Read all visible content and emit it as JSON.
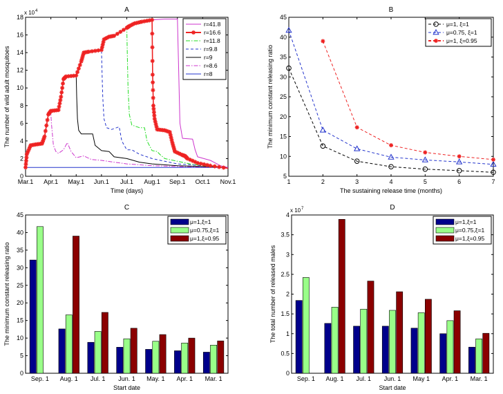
{
  "chart_data": [
    {
      "id": "A",
      "type": "line",
      "title": "A",
      "xlabel": "Time (days)",
      "ylabel": "The number of wild adult mosquitoes",
      "y_multiplier": "x 10^4",
      "y_multiplier_label": "x 10",
      "y_multiplier_exp": "4",
      "xlim": [
        0,
        8
      ],
      "ylim": [
        0,
        18
      ],
      "xticks": [
        "Mar.1",
        "Apr.1",
        "May.1",
        "Jun.1",
        "Jul.1",
        "Aug.1",
        "Sep.1",
        "Oct.1",
        "Nov.1"
      ],
      "yticks": [
        0,
        2,
        4,
        6,
        8,
        10,
        12,
        14,
        16,
        18
      ],
      "legend_position": "top-right",
      "series": [
        {
          "name": "r=41.8",
          "color": "#cc33cc",
          "style": "solid",
          "marker": "none",
          "x": [
            0,
            0.05,
            0.2,
            0.4,
            0.65,
            0.75,
            0.9,
            1.0,
            1.3,
            1.4,
            1.5,
            1.6,
            2.0,
            2.2,
            2.3,
            2.5,
            3.0,
            3.1,
            3.3,
            3.5,
            4.0,
            4.1,
            4.3,
            4.6,
            5.0,
            5.5,
            6.0,
            6.05,
            6.1,
            6.2,
            6.6,
            6.7,
            6.8,
            7.3,
            7.5,
            7.7,
            8.0
          ],
          "y": [
            1,
            2.5,
            3.5,
            3.6,
            3.7,
            4.5,
            7,
            7.4,
            7.5,
            9,
            11,
            11.3,
            11.4,
            13,
            14,
            14.1,
            14.3,
            15.5,
            15.8,
            15.9,
            16.8,
            17,
            17.3,
            17.5,
            17.7,
            17.8,
            17.8,
            12,
            6,
            4.3,
            4.2,
            3,
            2.2,
            1.8,
            1.5,
            1.2,
            1
          ]
        },
        {
          "name": "r=16.6",
          "color": "#ee2222",
          "style": "solid",
          "marker": "star",
          "x": [
            0,
            0.05,
            0.2,
            0.4,
            0.65,
            0.75,
            0.9,
            1.0,
            1.3,
            1.4,
            1.5,
            1.6,
            2.0,
            2.2,
            2.3,
            2.5,
            3.0,
            3.1,
            3.3,
            3.5,
            4.0,
            4.1,
            4.3,
            4.6,
            5.0,
            5.02,
            5.05,
            5.1,
            5.2,
            5.5,
            5.7,
            5.8,
            5.9,
            6.2,
            6.3,
            6.4,
            6.8,
            7.3,
            8.0
          ],
          "y": [
            1,
            2.5,
            3.5,
            3.6,
            3.7,
            4.5,
            7,
            7.4,
            7.5,
            9,
            11,
            11.3,
            11.4,
            13,
            14,
            14.1,
            14.3,
            15.5,
            15.8,
            15.9,
            16.8,
            17,
            17.3,
            17.5,
            17.7,
            11.5,
            8,
            6.5,
            5.3,
            5.2,
            5,
            3.8,
            2.8,
            2.4,
            2.3,
            2.0,
            1.5,
            1.2,
            0.9
          ]
        },
        {
          "name": "r=11.8",
          "color": "#22dd22",
          "style": "dashdot",
          "marker": "none",
          "x": [
            0,
            0.05,
            0.2,
            0.4,
            0.65,
            0.75,
            0.9,
            1.0,
            1.3,
            1.4,
            1.5,
            1.6,
            2.0,
            2.2,
            2.3,
            2.5,
            3.0,
            3.1,
            3.3,
            3.5,
            4.0,
            4.02,
            4.05,
            4.1,
            4.2,
            4.5,
            4.7,
            4.8,
            5.0,
            5.2,
            5.3,
            5.5,
            6.0,
            6.5,
            7.0,
            8.0
          ],
          "y": [
            1,
            2.5,
            3.5,
            3.6,
            3.7,
            4.5,
            7,
            7.4,
            7.5,
            9,
            11,
            11.3,
            11.4,
            13,
            14,
            14.1,
            14.3,
            15.5,
            15.8,
            15.9,
            16.8,
            14,
            10,
            7,
            5.8,
            5.5,
            5.5,
            4.0,
            2.9,
            2.8,
            2.5,
            2.0,
            1.7,
            1.4,
            1.2,
            0.95
          ]
        },
        {
          "name": "r=9.8",
          "color": "#2233cc",
          "style": "dashed",
          "marker": "none",
          "x": [
            0,
            0.05,
            0.2,
            0.4,
            0.65,
            0.75,
            0.9,
            1.0,
            1.3,
            1.4,
            1.5,
            1.6,
            2.0,
            2.2,
            2.3,
            2.5,
            3.0,
            3.02,
            3.05,
            3.1,
            3.2,
            3.4,
            3.7,
            3.8,
            4.0,
            4.2,
            4.5,
            5.0,
            5.5,
            6.0,
            7.0,
            8.0
          ],
          "y": [
            1,
            2.5,
            3.5,
            3.6,
            3.7,
            4.5,
            7,
            7.4,
            7.5,
            9,
            11,
            11.3,
            11.4,
            13,
            14,
            14.1,
            14.3,
            12,
            9,
            6.5,
            5.5,
            5.3,
            5.6,
            4.0,
            3.0,
            3.0,
            2.5,
            2.0,
            1.7,
            1.4,
            1.2,
            1.0
          ]
        },
        {
          "name": "r=9",
          "color": "#000000",
          "style": "solid",
          "marker": "none",
          "x": [
            0,
            0.05,
            0.2,
            0.4,
            0.65,
            0.75,
            0.9,
            1.0,
            1.3,
            1.4,
            1.5,
            1.6,
            2.0,
            2.02,
            2.05,
            2.1,
            2.2,
            2.5,
            2.65,
            2.75,
            3.0,
            3.3,
            3.5,
            4.0,
            4.5,
            5.0,
            6.0,
            7.0,
            8.0
          ],
          "y": [
            1,
            2.5,
            3.5,
            3.6,
            3.7,
            4.5,
            7,
            7.4,
            7.5,
            9,
            11,
            11.3,
            11.4,
            9,
            6.5,
            5.2,
            4.8,
            4.8,
            4.8,
            3.5,
            2.9,
            2.8,
            2.2,
            2.0,
            1.6,
            1.4,
            1.2,
            1.1,
            1.0
          ]
        },
        {
          "name": "r=8.6",
          "color": "#cc33cc",
          "style": "dashdot",
          "marker": "none",
          "x": [
            0,
            0.05,
            0.2,
            0.4,
            0.65,
            0.75,
            0.9,
            1.0,
            1.02,
            1.1,
            1.2,
            1.3,
            1.5,
            1.65,
            1.8,
            2.0,
            2.3,
            2.6,
            3.0,
            3.5,
            4.0,
            5.0,
            6.0,
            7.0,
            8.0
          ],
          "y": [
            1,
            2.5,
            3.5,
            3.6,
            3.7,
            4.5,
            7,
            7.2,
            6,
            3.5,
            2.8,
            2.6,
            3.0,
            3.8,
            2.8,
            2.1,
            2.3,
            1.9,
            1.8,
            1.6,
            1.4,
            1.2,
            1.1,
            1.05,
            1.0
          ]
        },
        {
          "name": "r=8",
          "color": "#2233cc",
          "style": "solid",
          "marker": "none",
          "x": [
            0,
            8
          ],
          "y": [
            1,
            1
          ]
        }
      ]
    },
    {
      "id": "B",
      "type": "line",
      "title": "B",
      "xlabel": "The sustaining release time (months)",
      "ylabel": "The minimum constant releasing ratio",
      "xlim": [
        1,
        7
      ],
      "ylim": [
        5,
        45
      ],
      "xticks": [
        1,
        2,
        3,
        4,
        5,
        6,
        7
      ],
      "yticks": [
        5,
        10,
        15,
        20,
        25,
        30,
        35,
        40,
        45
      ],
      "legend_position": "top-right",
      "series": [
        {
          "name": "μ=1, ξ=1",
          "color": "#000000",
          "style": "dashed",
          "marker": "circle",
          "x": [
            1,
            2,
            3,
            4,
            5,
            6,
            7
          ],
          "y": [
            32.2,
            12.6,
            8.8,
            7.4,
            6.8,
            6.4,
            6.0
          ]
        },
        {
          "name": "μ=0.75, ξ=1",
          "color": "#2233cc",
          "style": "dashed",
          "marker": "triangle",
          "x": [
            1,
            2,
            3,
            4,
            5,
            6,
            7
          ],
          "y": [
            41.7,
            16.6,
            11.9,
            9.8,
            9.1,
            8.6,
            8.0
          ]
        },
        {
          "name": "μ=1, ξ=0.95",
          "color": "#ee2222",
          "style": "dashed",
          "marker": "star",
          "x": [
            2,
            3,
            4,
            5,
            6,
            7
          ],
          "y": [
            39.0,
            17.3,
            12.8,
            11.0,
            10.0,
            9.2
          ]
        }
      ]
    },
    {
      "id": "C",
      "type": "bar",
      "title": "C",
      "xlabel": "Start date",
      "ylabel": "The minimum constant releasing ratio",
      "ylim": [
        0,
        45
      ],
      "yticks": [
        0,
        5,
        10,
        15,
        20,
        25,
        30,
        35,
        40,
        45
      ],
      "categories": [
        "Sep. 1",
        "Aug. 1",
        "Jul. 1",
        "Jun. 1",
        "May. 1",
        "Apr. 1",
        "Mar. 1"
      ],
      "legend_position": "top-right",
      "series": [
        {
          "name": "μ=1,ξ=1",
          "color": "#00008b",
          "values": [
            32.2,
            12.6,
            8.8,
            7.4,
            6.8,
            6.4,
            6.0
          ]
        },
        {
          "name": "μ=0.75,ξ=1",
          "color": "#99ff88",
          "values": [
            41.7,
            16.6,
            11.9,
            9.8,
            9.1,
            8.6,
            8.0
          ]
        },
        {
          "name": "μ=1,ξ=0.95",
          "color": "#8b0000",
          "values": [
            0,
            39.0,
            17.3,
            12.8,
            11.0,
            10.0,
            9.2
          ]
        }
      ]
    },
    {
      "id": "D",
      "type": "bar",
      "title": "D",
      "xlabel": "Start date",
      "ylabel": "The total number of released males",
      "y_multiplier": "x 10^7",
      "y_multiplier_label": "x 10",
      "y_multiplier_exp": "7",
      "ylim": [
        0,
        4
      ],
      "yticks": [
        0,
        0.5,
        1,
        1.5,
        2,
        2.5,
        3,
        3.5,
        4
      ],
      "categories": [
        "Sep. 1",
        "Aug. 1",
        "Jul. 1",
        "Jun. 1",
        "May 1",
        "Apr. 1",
        "Mar. 1"
      ],
      "legend_position": "top-right",
      "series": [
        {
          "name": "μ=1,ξ=1",
          "color": "#00008b",
          "values": [
            1.84,
            1.26,
            1.19,
            1.19,
            1.14,
            1.0,
            0.66
          ]
        },
        {
          "name": "μ=0.75,ξ=1",
          "color": "#99ff88",
          "values": [
            2.42,
            1.67,
            1.62,
            1.59,
            1.53,
            1.33,
            0.87
          ]
        },
        {
          "name": "μ=1,ξ=0.95",
          "color": "#8b0000",
          "values": [
            0,
            3.89,
            2.33,
            2.06,
            1.87,
            1.58,
            1.01
          ]
        }
      ]
    }
  ]
}
